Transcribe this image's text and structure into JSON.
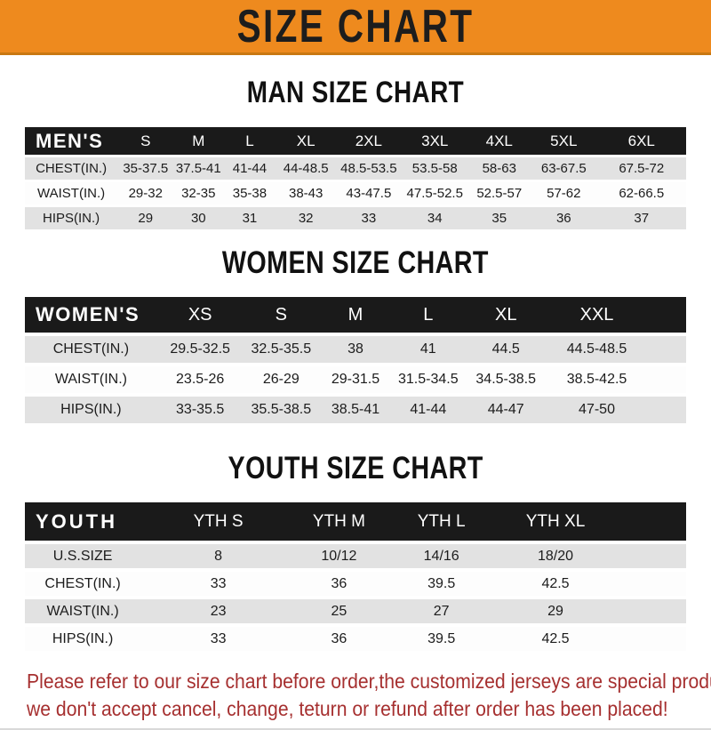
{
  "theme": {
    "banner_bg": "#ee8a1e",
    "banner_border": "#c97812",
    "header_bar_bg": "#1a1a1a",
    "header_bar_text": "#ffffff",
    "stripe_gray": "#e2e2e2",
    "disclaimer_red": "#a63030"
  },
  "banner": {
    "title": "SIZE CHART"
  },
  "man": {
    "title": "MAN SIZE CHART",
    "table": {
      "header": [
        "MEN'S",
        "S",
        "M",
        "L",
        "XL",
        "2XL",
        "3XL",
        "4XL",
        "5XL",
        "6XL"
      ],
      "rows": [
        [
          "CHEST(IN.)",
          "35-37.5",
          "37.5-41",
          "41-44",
          "44-48.5",
          "48.5-53.5",
          "53.5-58",
          "58-63",
          "63-67.5",
          "67.5-72"
        ],
        [
          "WAIST(IN.)",
          "29-32",
          "32-35",
          "35-38",
          "38-43",
          "43-47.5",
          "47.5-52.5",
          "52.5-57",
          "57-62",
          "62-66.5"
        ],
        [
          "HIPS(IN.)",
          "29",
          "30",
          "31",
          "32",
          "33",
          "34",
          "35",
          "36",
          "37"
        ]
      ]
    }
  },
  "women": {
    "title": "WOMEN SIZE CHART",
    "table": {
      "header": [
        "WOMEN'S",
        "XS",
        "S",
        "M",
        "L",
        "XL",
        "XXL",
        ""
      ],
      "rows": [
        [
          "CHEST(IN.)",
          "29.5-32.5",
          "32.5-35.5",
          "38",
          "41",
          "44.5",
          "44.5-48.5",
          ""
        ],
        [
          "WAIST(IN.)",
          "23.5-26",
          "26-29",
          "29-31.5",
          "31.5-34.5",
          "34.5-38.5",
          "38.5-42.5",
          ""
        ],
        [
          "HIPS(IN.)",
          "33-35.5",
          "35.5-38.5",
          "38.5-41",
          "41-44",
          "44-47",
          "47-50",
          ""
        ]
      ]
    }
  },
  "youth": {
    "title": "YOUTH SIZE CHART",
    "table": {
      "header": [
        "YOUTH",
        "YTH S",
        "YTH M",
        "YTH L",
        "YTH XL",
        ""
      ],
      "rows": [
        [
          "U.S.SIZE",
          "8",
          "10/12",
          "14/16",
          "18/20",
          ""
        ],
        [
          "CHEST(IN.)",
          "33",
          "36",
          "39.5",
          "42.5",
          ""
        ],
        [
          "WAIST(IN.)",
          "23",
          "25",
          "27",
          "29",
          ""
        ],
        [
          "HIPS(IN.)",
          "33",
          "36",
          "39.5",
          "42.5",
          ""
        ]
      ]
    }
  },
  "footer": {
    "line1": "Please refer to our size chart before order,the customized jerseys are special products,",
    "line2": "we don't accept cancel, change, teturn or refund after order has been placed!"
  }
}
